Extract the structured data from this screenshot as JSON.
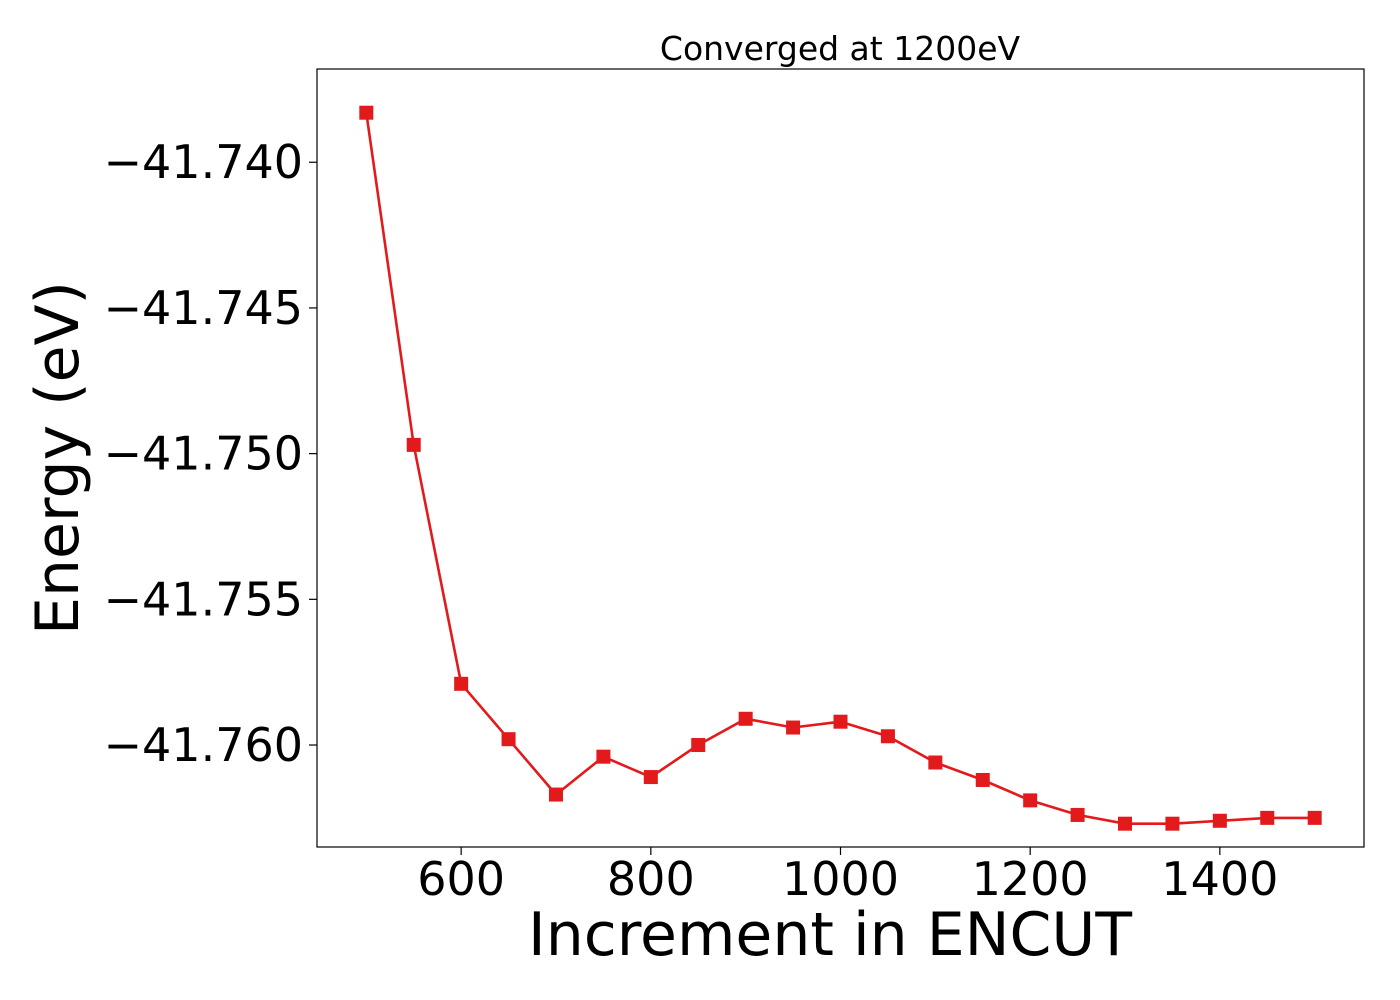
{
  "chart_data": {
    "type": "line",
    "title": "Converged at 1200eV",
    "xlabel": "Increment in ENCUT",
    "ylabel": "Energy (eV)",
    "xlim": [
      448,
      1552
    ],
    "ylim": [
      -41.7635,
      -41.7368
    ],
    "x_ticks": [
      600,
      800,
      1000,
      1200,
      1400
    ],
    "x_tick_labels": [
      "600",
      "800",
      "1000",
      "1200",
      "1400"
    ],
    "y_ticks": [
      -41.74,
      -41.745,
      -41.75,
      -41.755,
      -41.76
    ],
    "y_tick_labels": [
      "−41.740",
      "−41.745",
      "−41.750",
      "−41.755",
      "−41.760"
    ],
    "grid": false,
    "series": [
      {
        "color": "#e31a1c",
        "marker": "square",
        "x": [
          500,
          550,
          600,
          650,
          700,
          750,
          800,
          850,
          900,
          950,
          1000,
          1050,
          1100,
          1150,
          1200,
          1250,
          1300,
          1350,
          1400,
          1450,
          1500
        ],
        "y": [
          -41.7383,
          -41.7497,
          -41.7579,
          -41.7598,
          -41.7617,
          -41.7604,
          -41.7611,
          -41.76,
          -41.7591,
          -41.7594,
          -41.7592,
          -41.7597,
          -41.7606,
          -41.7612,
          -41.7619,
          -41.7624,
          -41.7627,
          -41.7627,
          -41.7626,
          -41.7625,
          -41.7625
        ]
      }
    ]
  }
}
